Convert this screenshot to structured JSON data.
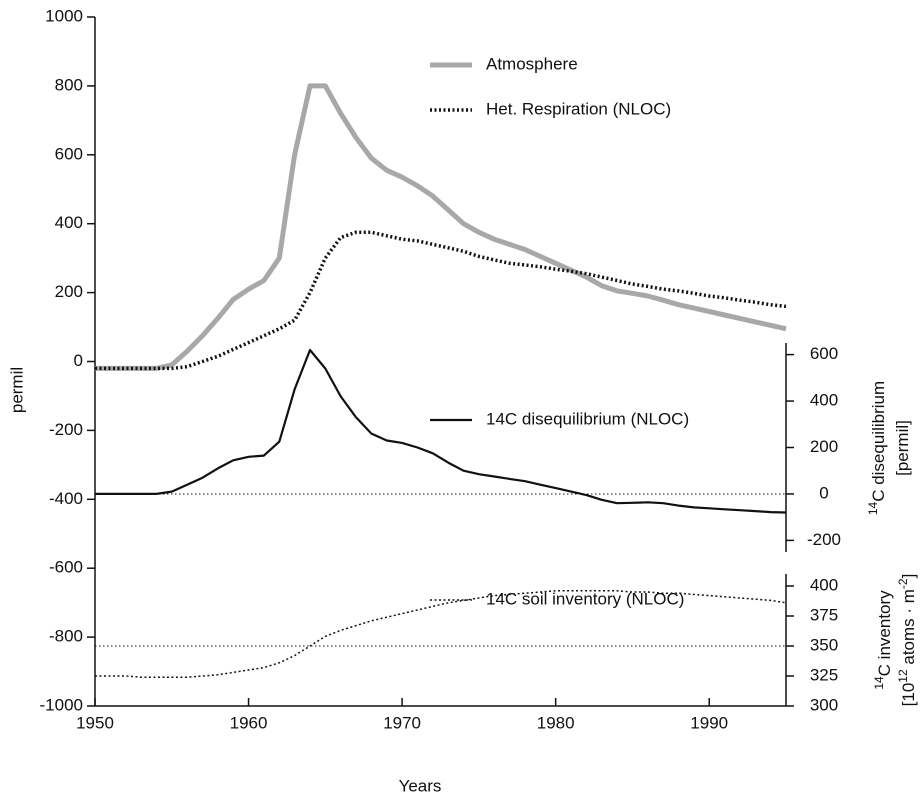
{
  "chart_data": {
    "type": "line",
    "x_label": "Years",
    "y_label": "permil",
    "y2_label": [
      [
        "14",
        "C disequilibrium"
      ],
      [
        "[permil]"
      ]
    ],
    "y3_label": [
      [
        "14",
        "C inventory"
      ],
      [
        "[10",
        "12",
        " atoms · m",
        "-2",
        "]"
      ]
    ],
    "xlim": [
      1950,
      1995
    ],
    "xticks": [
      1950,
      1960,
      1970,
      1980,
      1990
    ],
    "ylim": [
      -1000,
      1000
    ],
    "yticks": [
      -1000,
      -800,
      -600,
      -400,
      -200,
      0,
      200,
      400,
      600,
      800,
      1000
    ],
    "y2lim": [
      -250,
      650
    ],
    "y2ticks": [
      -200,
      0,
      200,
      400,
      600
    ],
    "y3lim": [
      300,
      410
    ],
    "y3ticks": [
      300,
      325,
      350,
      375,
      400
    ],
    "reference_lines": {
      "y2": 0,
      "y3": 350
    },
    "x": [
      1950,
      1951,
      1952,
      1953,
      1954,
      1955,
      1956,
      1957,
      1958,
      1959,
      1960,
      1961,
      1962,
      1963,
      1964,
      1965,
      1966,
      1967,
      1968,
      1969,
      1970,
      1971,
      1972,
      1973,
      1974,
      1975,
      1976,
      1977,
      1978,
      1979,
      1980,
      1981,
      1982,
      1983,
      1984,
      1985,
      1986,
      1987,
      1988,
      1989,
      1990,
      1991,
      1992,
      1993,
      1994,
      1995
    ],
    "series": [
      {
        "name": "Atmosphere",
        "color": "#a8a8a8",
        "dash": "solid",
        "width": 5,
        "axis": "y",
        "values": [
          -20,
          -20,
          -20,
          -20,
          -20,
          -10,
          30,
          75,
          125,
          180,
          210,
          235,
          300,
          600,
          800,
          800,
          720,
          650,
          590,
          555,
          535,
          510,
          480,
          440,
          400,
          375,
          355,
          340,
          325,
          305,
          285,
          265,
          245,
          220,
          205,
          198,
          190,
          178,
          165,
          155,
          145,
          135,
          125,
          115,
          105,
          95
        ]
      },
      {
        "name": "Het. Respiration (NLOC)",
        "color": "#111111",
        "dash": "dotted",
        "width": 3.5,
        "axis": "y",
        "values": [
          -20,
          -20,
          -20,
          -20,
          -20,
          -20,
          -15,
          0,
          15,
          35,
          55,
          75,
          95,
          120,
          200,
          300,
          360,
          375,
          375,
          365,
          355,
          350,
          340,
          330,
          320,
          305,
          295,
          285,
          280,
          275,
          268,
          262,
          255,
          245,
          235,
          225,
          218,
          210,
          205,
          198,
          190,
          185,
          178,
          172,
          165,
          160
        ]
      },
      {
        "name": "14C disequilibrium (NLOC)",
        "color": "#111111",
        "dash": "solid",
        "width": 2.2,
        "axis": "y2",
        "values": [
          0,
          0,
          0,
          0,
          0,
          10,
          40,
          70,
          110,
          145,
          160,
          165,
          225,
          450,
          620,
          540,
          420,
          330,
          260,
          230,
          220,
          200,
          175,
          135,
          100,
          85,
          75,
          65,
          55,
          40,
          25,
          10,
          -5,
          -25,
          -40,
          -38,
          -36,
          -40,
          -50,
          -58,
          -62,
          -66,
          -70,
          -74,
          -78,
          -80
        ]
      },
      {
        "name": "14C soil inventory (NLOC)",
        "color": "#111111",
        "dash": "dotted",
        "width": 1.5,
        "axis": "y3",
        "values": [
          325,
          325,
          325,
          324,
          324,
          324,
          324,
          325,
          326,
          328,
          330,
          332,
          336,
          342,
          350,
          358,
          363,
          367,
          371,
          374,
          377,
          380,
          383,
          386,
          388,
          390,
          392,
          393,
          394,
          395,
          396,
          396,
          396,
          396,
          396,
          395,
          395,
          394,
          394,
          393,
          392,
          391,
          390,
          389,
          388,
          386
        ]
      }
    ]
  }
}
